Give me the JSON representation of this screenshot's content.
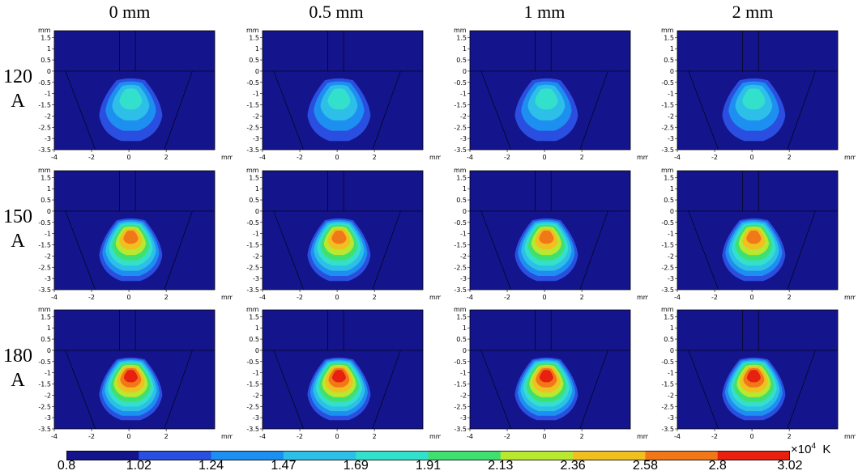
{
  "columns": [
    {
      "label": "0 mm"
    },
    {
      "label": "0.5 mm"
    },
    {
      "label": "1 mm"
    },
    {
      "label": "2 mm"
    }
  ],
  "rows": [
    {
      "line1": "120",
      "line2": "A",
      "peak_level": 4
    },
    {
      "line1": "150",
      "line2": "A",
      "peak_level": 8
    },
    {
      "line1": "180",
      "line2": "A",
      "peak_level": 9
    }
  ],
  "axes": {
    "unit": "mm",
    "x_ticks": [
      "-4",
      "-2",
      "0",
      "2"
    ],
    "y_ticks": [
      "1.5",
      "1",
      "0.5",
      "0",
      "-0.5",
      "-1",
      "-1.5",
      "-2",
      "-2.5",
      "-3",
      "-3.5"
    ]
  },
  "colorbar": {
    "labels": [
      "0.8",
      "1.02",
      "1.24",
      "1.47",
      "1.69",
      "1.91",
      "2.13",
      "2.36",
      "2.58",
      "2.8",
      "3.02"
    ],
    "colors": [
      "#14148c",
      "#2a4fe0",
      "#1d8ff0",
      "#2dbfe8",
      "#33e0cc",
      "#40e070",
      "#b8e830",
      "#f0c020",
      "#f07818",
      "#e82010"
    ],
    "multiplier": "×10",
    "exponent": "4",
    "unit": "K"
  },
  "background_color": "#14148c"
}
